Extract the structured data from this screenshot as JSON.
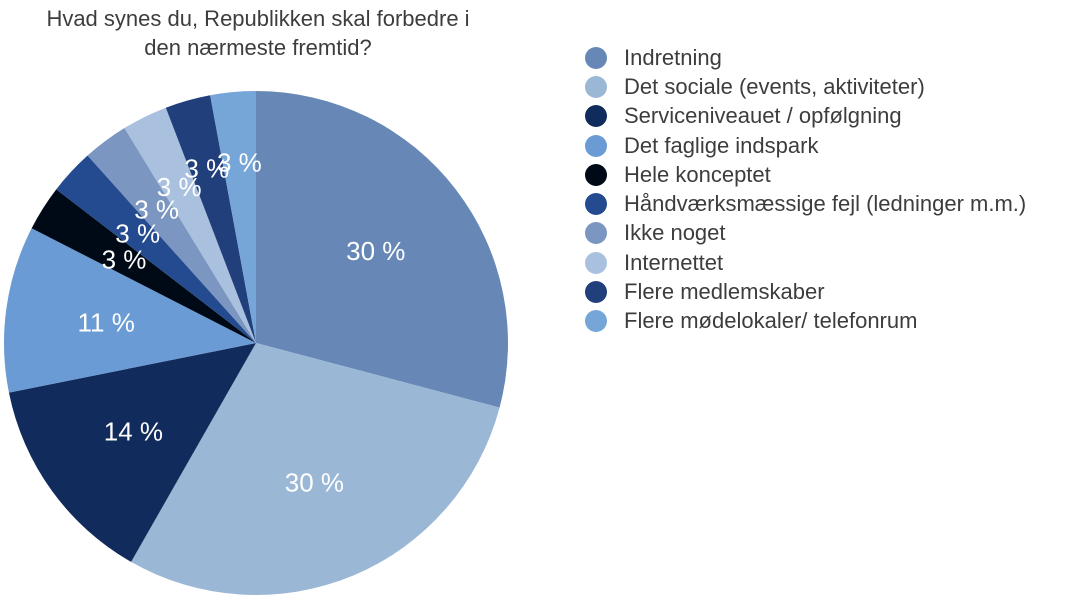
{
  "chart_data": {
    "type": "pie",
    "title": "Hvad synes du, Republikken skal forbedre i den nærmeste fremtid?",
    "title_lines": [
      "Hvad synes du, Republikken skal forbedre i",
      "den nærmeste fremtid?"
    ],
    "start_angle_deg": 0,
    "direction": "clockwise",
    "legend_position": "right",
    "slices": [
      {
        "label": "Indretning",
        "value": 30,
        "display": "30 %",
        "color": "#6788b6"
      },
      {
        "label": "Det sociale (events, aktiviteter)",
        "value": 30,
        "display": "30 %",
        "color": "#9bb7d6"
      },
      {
        "label": "Serviceniveauet / opfølgning",
        "value": 14,
        "display": "14 %",
        "color": "#112b5c"
      },
      {
        "label": "Det faglige indspark",
        "value": 11,
        "display": "11 %",
        "color": "#6a9bd4"
      },
      {
        "label": "Hele konceptet",
        "value": 3,
        "display": "3 %",
        "color": "#000a16"
      },
      {
        "label": "Håndværksmæssige fejl (ledninger m.m.)",
        "value": 3,
        "display": "3 %",
        "color": "#244a8f"
      },
      {
        "label": "Ikke noget",
        "value": 3,
        "display": "3 %",
        "color": "#7b96c0"
      },
      {
        "label": "Internettet",
        "value": 3,
        "display": "3 %",
        "color": "#a9c1de"
      },
      {
        "label": "Flere medlemskaber",
        "value": 3,
        "display": "3 %",
        "color": "#213f7a"
      },
      {
        "label": "Flere mødelokaler/ telefonrum",
        "value": 3,
        "display": "3 %",
        "color": "#76a6d8"
      }
    ]
  }
}
